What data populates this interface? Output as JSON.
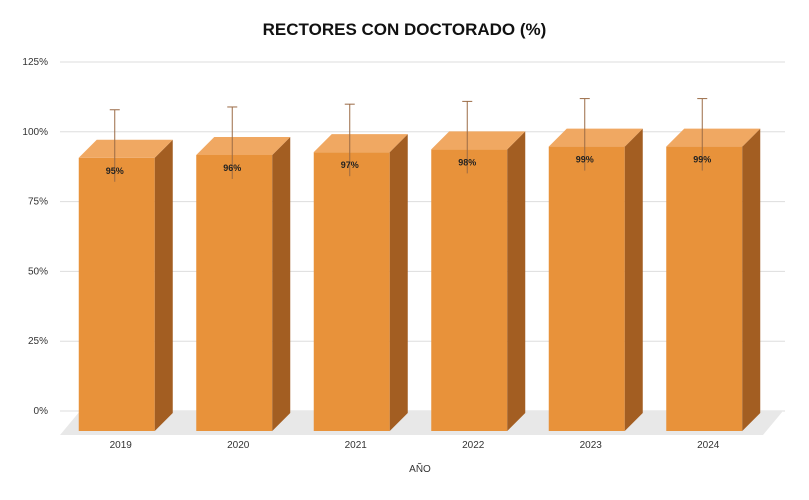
{
  "chart_data": {
    "type": "bar",
    "title": "RECTORES CON DOCTORADO (%)",
    "xlabel": "AÑO",
    "ylabel": "",
    "categories": [
      "2019",
      "2020",
      "2021",
      "2022",
      "2023",
      "2024"
    ],
    "values": [
      95,
      96,
      97,
      98,
      99,
      99
    ],
    "data_labels": [
      "95%",
      "96%",
      "97%",
      "98%",
      "99%",
      "99%"
    ],
    "y_ticks": [
      "0%",
      "25%",
      "50%",
      "75%",
      "100%",
      "125%"
    ],
    "ylim": [
      0,
      125
    ],
    "grid": true,
    "legend": "none",
    "style": "3d-column",
    "colors": {
      "front": "#E8923A",
      "side": "#A35E22",
      "top": "#F0A862",
      "grid": "#DDDDDD",
      "error_bar": "#9A6A45",
      "floor": "#E8E8E8"
    }
  }
}
